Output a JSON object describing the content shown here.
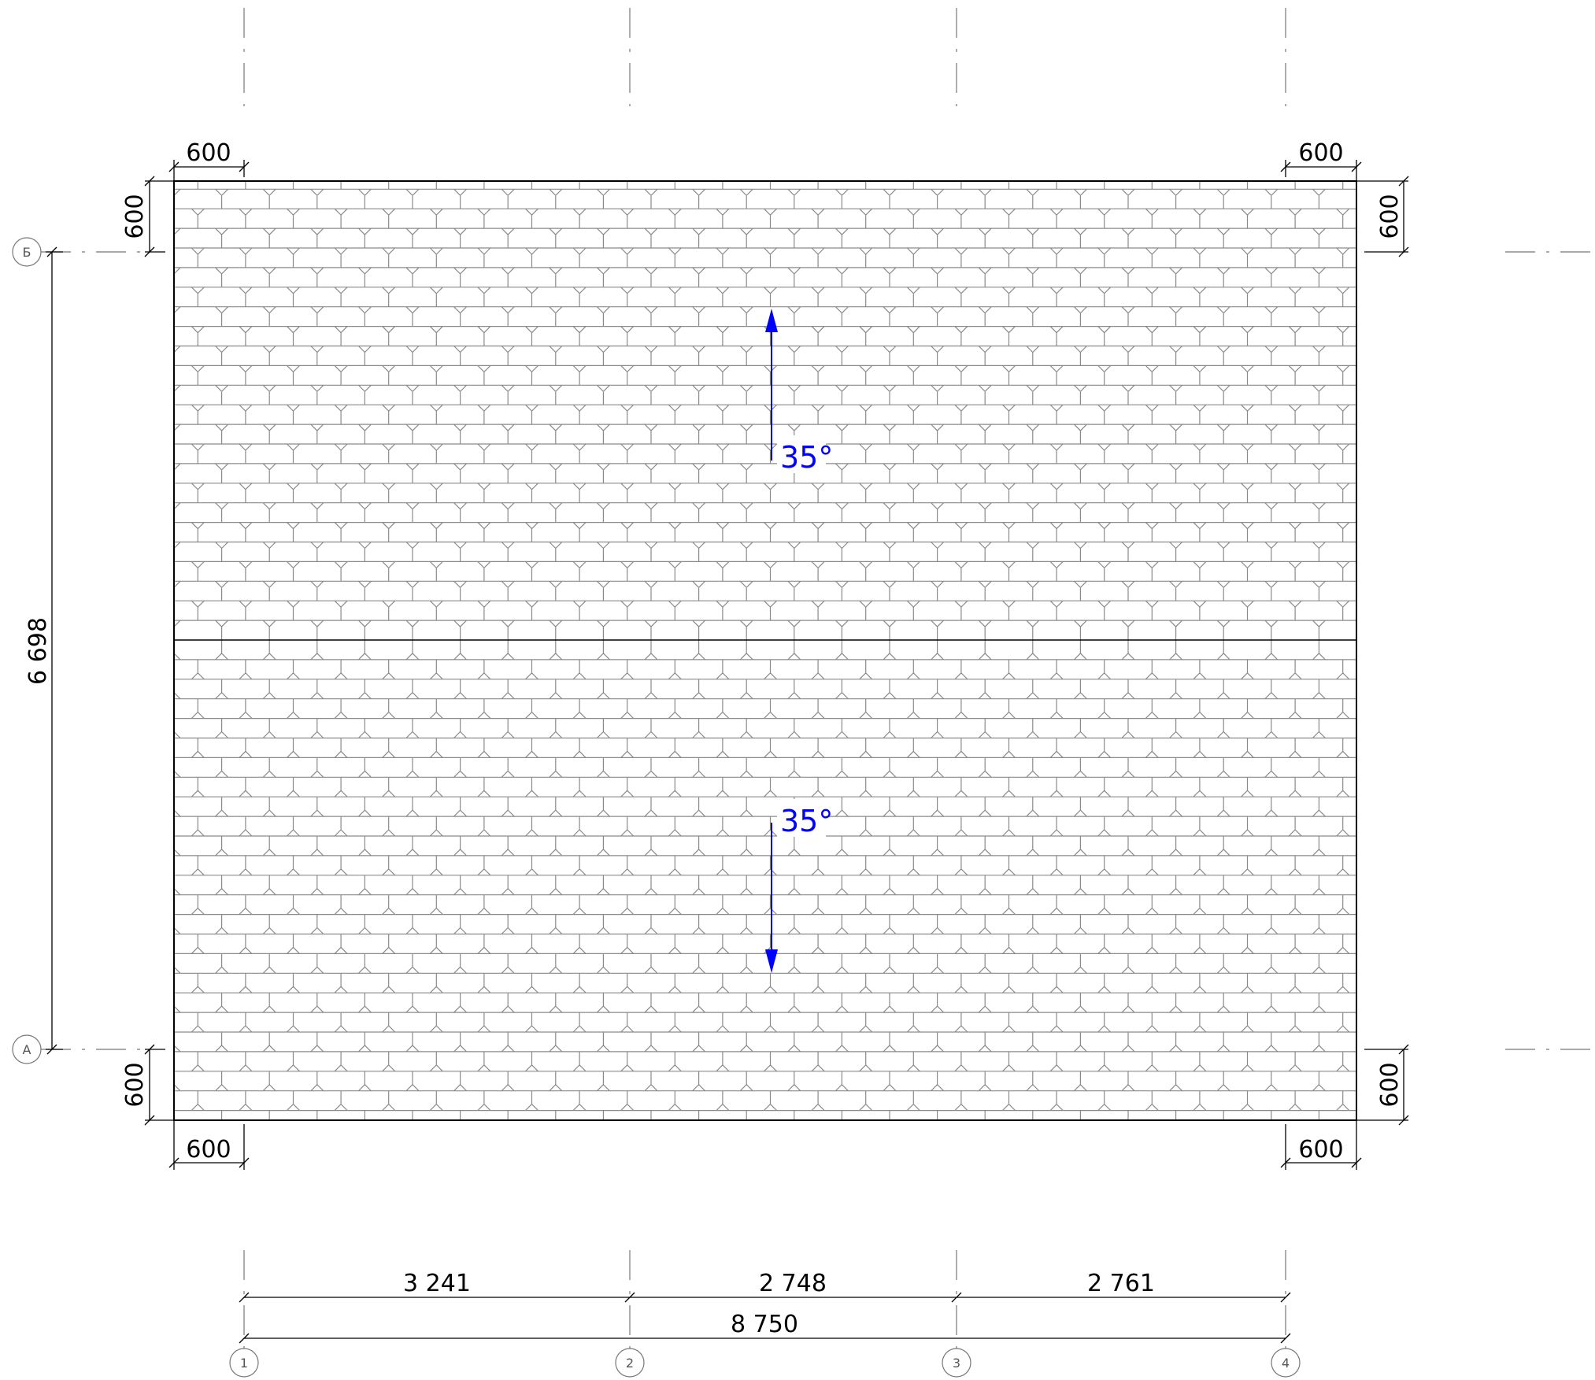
{
  "grid_axes": {
    "columns": [
      {
        "label": "1",
        "name": "grid-axis-1-label"
      },
      {
        "label": "2",
        "name": "grid-axis-2-label"
      },
      {
        "label": "3",
        "name": "grid-axis-3-label"
      },
      {
        "label": "4",
        "name": "grid-axis-4-label"
      }
    ],
    "rows": [
      {
        "label": "Б",
        "name": "grid-axis-b-label"
      },
      {
        "label": "А",
        "name": "grid-axis-a-label"
      }
    ]
  },
  "dimensions": {
    "overhang_top_left": "600",
    "overhang_top_right": "600",
    "overhang_bottom_left": "600",
    "overhang_bottom_right": "600",
    "overhang_left_top": "600",
    "overhang_right_top": "600",
    "overhang_left_bottom": "600",
    "overhang_right_bottom": "600",
    "span_1_2": "3 241",
    "span_2_3": "2 748",
    "span_3_4": "2 761",
    "span_total": "8 750",
    "span_a_b": "6 698"
  },
  "slopes": {
    "upper": "35°",
    "lower": "35°"
  },
  "colors": {
    "line": "#000000",
    "tile": "#8a8a8a",
    "slope_arrow": "#0000ff",
    "axis": "#777777"
  }
}
